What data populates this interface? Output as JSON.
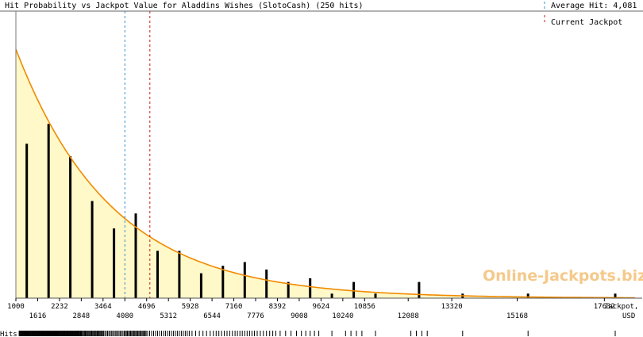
{
  "chart_data": {
    "type": "bar",
    "title": "Hit Probability vs Jackpot Value for Aladdins Wishes (SlotoCash) (250 hits)",
    "xlabel": "Jackpot,",
    "xunit": "USD",
    "rug_label": "Hits",
    "watermark": "Online-Jackpots.biz",
    "xlim": [
      1000,
      18500
    ],
    "ylim": [
      0,
      1
    ],
    "ticks_upper": [
      1000,
      2232,
      3464,
      4696,
      5928,
      7160,
      8392,
      9624,
      10856,
      13320,
      17632
    ],
    "ticks_lower": [
      1616,
      2848,
      4080,
      5312,
      6544,
      7776,
      9008,
      10240,
      12088,
      15168
    ],
    "bars": {
      "x": [
        1308,
        1924,
        2540,
        3156,
        3772,
        4388,
        5004,
        5620,
        6236,
        6852,
        7468,
        8084,
        8700,
        9316,
        9932,
        10548,
        11164,
        12396,
        13628,
        15476,
        17940
      ],
      "values": [
        0.62,
        0.7,
        0.57,
        0.39,
        0.28,
        0.34,
        0.19,
        0.19,
        0.1,
        0.13,
        0.145,
        0.115,
        0.065,
        0.08,
        0.018,
        0.065,
        0.018,
        0.065,
        0.018,
        0.018,
        0.018
      ]
    },
    "curve": {
      "name": "",
      "amplitude": 1.0,
      "decay_per_usd": 0.00037,
      "color": "#f08a00",
      "fill": "#fff8c8"
    },
    "reference_lines": [
      {
        "label": "Average Hit: 4,081",
        "x": 4081,
        "color": "#3a8fd0"
      },
      {
        "label": "Current Jackpot",
        "x": 4788,
        "color": "#d01818"
      }
    ]
  }
}
